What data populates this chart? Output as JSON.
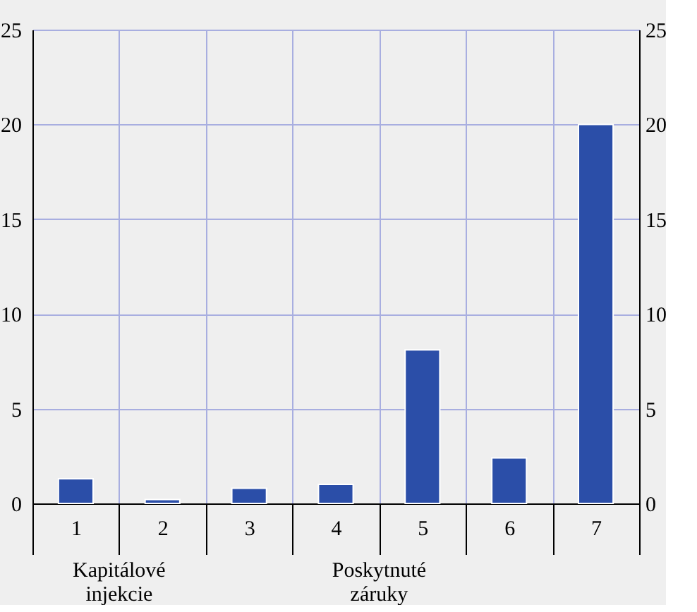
{
  "chart_data": {
    "type": "bar",
    "categories": [
      "1",
      "2",
      "3",
      "4",
      "5",
      "6",
      "7"
    ],
    "values": [
      1.3,
      0.2,
      0.8,
      1.0,
      8.1,
      2.4,
      20.0
    ],
    "color": "#2b4ea8",
    "ylim": [
      0,
      25
    ],
    "yticks": [
      0,
      5,
      10,
      15,
      20,
      25
    ],
    "y2lim": [
      0,
      25
    ],
    "y2ticks": [
      0,
      5,
      10,
      15,
      20,
      25
    ],
    "grid": true,
    "annotations": [
      "Kapitálové injekcie",
      "Poskytnuté záruky"
    ]
  }
}
